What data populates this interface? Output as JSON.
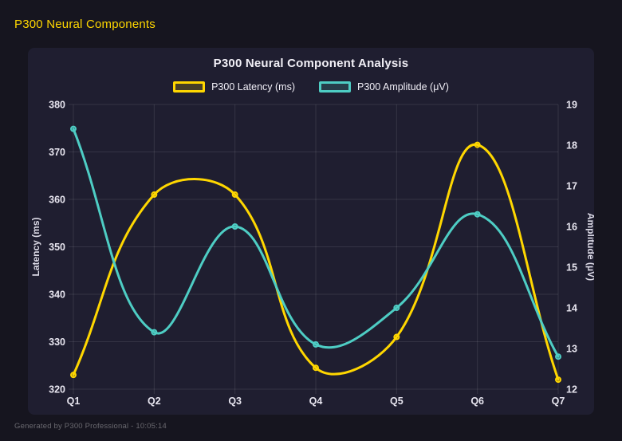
{
  "header": {
    "title": "P300 Neural Components"
  },
  "footer": {
    "text": "Generated by P300 Professional - 10:05:14"
  },
  "colors": {
    "page_bg": "#16151f",
    "panel_bg": "#1f1e30",
    "grid": "rgba(255,255,255,0.10)",
    "tick_text": "#E8E6F0",
    "accent": "#FFD700",
    "latency_line": "#FFD700",
    "amplitude_line": "#4ECDC4",
    "muted_text": "rgba(255,255,255,0.35)"
  },
  "chart_data": {
    "type": "line",
    "title": "P300 Neural Component Analysis",
    "categories": [
      "Q1",
      "Q2",
      "Q3",
      "Q4",
      "Q5",
      "Q6",
      "Q7"
    ],
    "series": [
      {
        "name": "P300 Latency (ms)",
        "axis": "left",
        "color": "#FFD700",
        "values": [
          323,
          361,
          361,
          324.5,
          331,
          371.5,
          322
        ]
      },
      {
        "name": "P300 Amplitude (μV)",
        "axis": "right",
        "color": "#4ECDC4",
        "values": [
          18.4,
          13.4,
          16.0,
          13.1,
          14.0,
          16.3,
          12.8
        ]
      }
    ],
    "axes": {
      "left": {
        "label": "Latency (ms)",
        "min": 320,
        "max": 380,
        "step": 10
      },
      "right": {
        "label": "Amplitude (μV)",
        "min": 12,
        "max": 19,
        "step": 1
      }
    },
    "legend_position": "top",
    "grid": true,
    "curve_tension": 0.4
  }
}
